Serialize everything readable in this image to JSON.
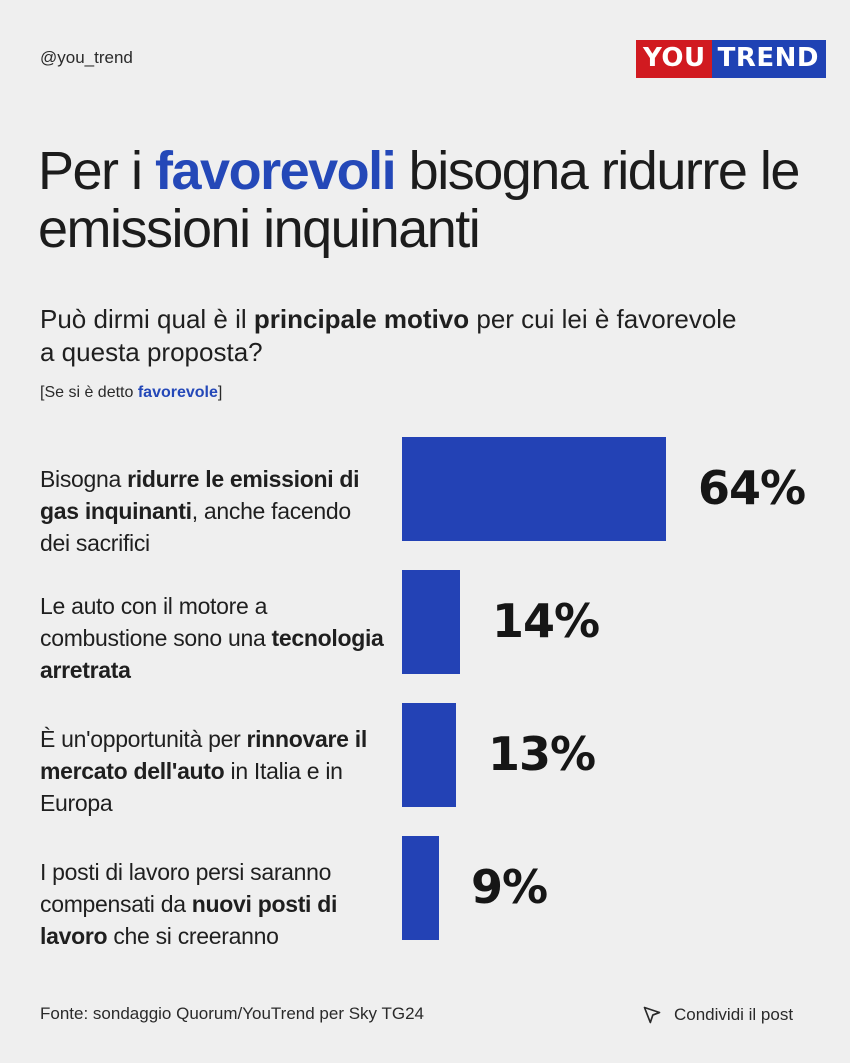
{
  "header": {
    "handle": "@you_trend",
    "logo_part1": "YOU",
    "logo_part2": "TREND"
  },
  "title": {
    "pre": "Per i ",
    "highlight": "favorevoli",
    "post": " bisogna ridurre le emissioni inquinanti"
  },
  "question": {
    "pre": "Può dirmi qual è il ",
    "bold": "principale motivo",
    "post": " per cui lei è favorevole a questa proposta?"
  },
  "note": {
    "pre": "[Se si è detto ",
    "highlight": "favorevole",
    "post": "]"
  },
  "chart_data": {
    "type": "bar",
    "orientation": "horizontal",
    "categories": [
      [
        {
          "t": "Bisogna "
        },
        {
          "t": "ridurre le emissioni di gas inquinanti",
          "b": true
        },
        {
          "t": ", anche facendo dei sacrifici"
        }
      ],
      [
        {
          "t": "Le auto con il motore a combustione sono una "
        },
        {
          "t": "tecnologia arretrata",
          "b": true
        }
      ],
      [
        {
          "t": "È un'opportunità  per "
        },
        {
          "t": "rinnovare il mercato dell'auto",
          "b": true
        },
        {
          "t": " in Italia e in Europa"
        }
      ],
      [
        {
          "t": "I posti di lavoro persi saranno compensati da "
        },
        {
          "t": "nuovi posti di lavoro",
          "b": true
        },
        {
          "t": " che si creeranno"
        }
      ]
    ],
    "values": [
      64,
      14,
      13,
      9
    ],
    "value_labels": [
      "64%",
      "14%",
      "13%",
      "9%"
    ],
    "unit": "%",
    "bar_color": "#2342b5",
    "grid": false,
    "legend": false
  },
  "footer": {
    "source": "Fonte: sondaggio Quorum/YouTrend per Sky TG24",
    "share_label": "Condividi il post"
  }
}
